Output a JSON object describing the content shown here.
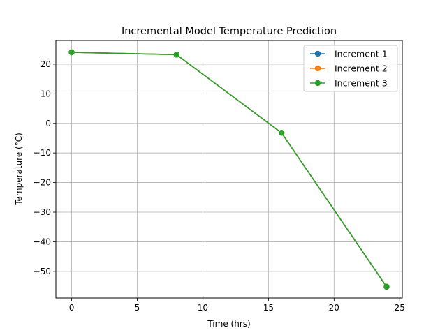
{
  "chart_data": {
    "type": "line",
    "title": "Incremental Model Temperature Prediction",
    "xlabel": "Time (hrs)",
    "ylabel": "Temperature (°C)",
    "xlim": [
      -1.2,
      25.2
    ],
    "ylim": [
      -59.0,
      28.0
    ],
    "xticks": [
      0,
      5,
      10,
      15,
      20,
      25
    ],
    "yticks": [
      20,
      10,
      0,
      -10,
      -20,
      -30,
      -40,
      -50
    ],
    "grid": true,
    "legend_position": "top-right",
    "x": [
      0,
      8,
      16,
      24
    ],
    "series": [
      {
        "name": "Increment 1",
        "color": "#1f77b4",
        "values": [
          24.0,
          23.2,
          -3.2,
          -55.2
        ]
      },
      {
        "name": "Increment 2",
        "color": "#ff7f0e",
        "values": [
          24.0,
          23.2,
          -3.2,
          -55.2
        ]
      },
      {
        "name": "Increment 3",
        "color": "#2ca02c",
        "values": [
          24.0,
          23.2,
          -3.2,
          -55.2
        ]
      }
    ]
  }
}
